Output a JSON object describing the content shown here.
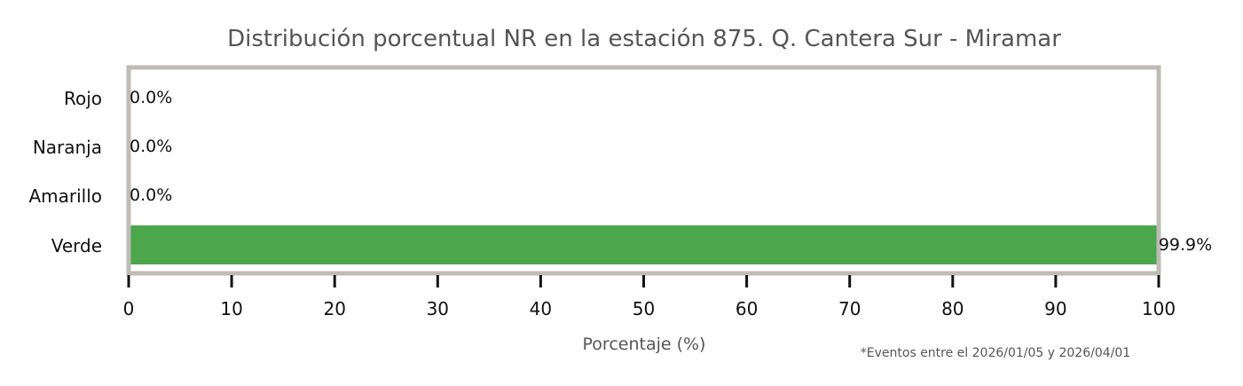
{
  "chart_data": {
    "type": "bar",
    "orientation": "horizontal",
    "title": "Distribución porcentual NR en la estación 875. Q. Cantera Sur - Miramar",
    "xlabel": "Porcentaje (%)",
    "ylabel": "",
    "categories": [
      "Rojo",
      "Naranja",
      "Amarillo",
      "Verde"
    ],
    "values": [
      0.0,
      0.0,
      0.0,
      99.9
    ],
    "value_labels": [
      "0.0%",
      "0.0%",
      "0.0%",
      "99.9%"
    ],
    "bar_colors": [
      "#e53935",
      "#fb8c00",
      "#fdd835",
      "#4ba64c"
    ],
    "xlim": [
      0,
      100
    ],
    "xticks": [
      0,
      10,
      20,
      30,
      40,
      50,
      60,
      70,
      80,
      90,
      100
    ],
    "grid": false,
    "frame_color": "#bfbbb6",
    "footnote": "*Eventos entre el 2026/01/05 y 2026/04/01"
  }
}
